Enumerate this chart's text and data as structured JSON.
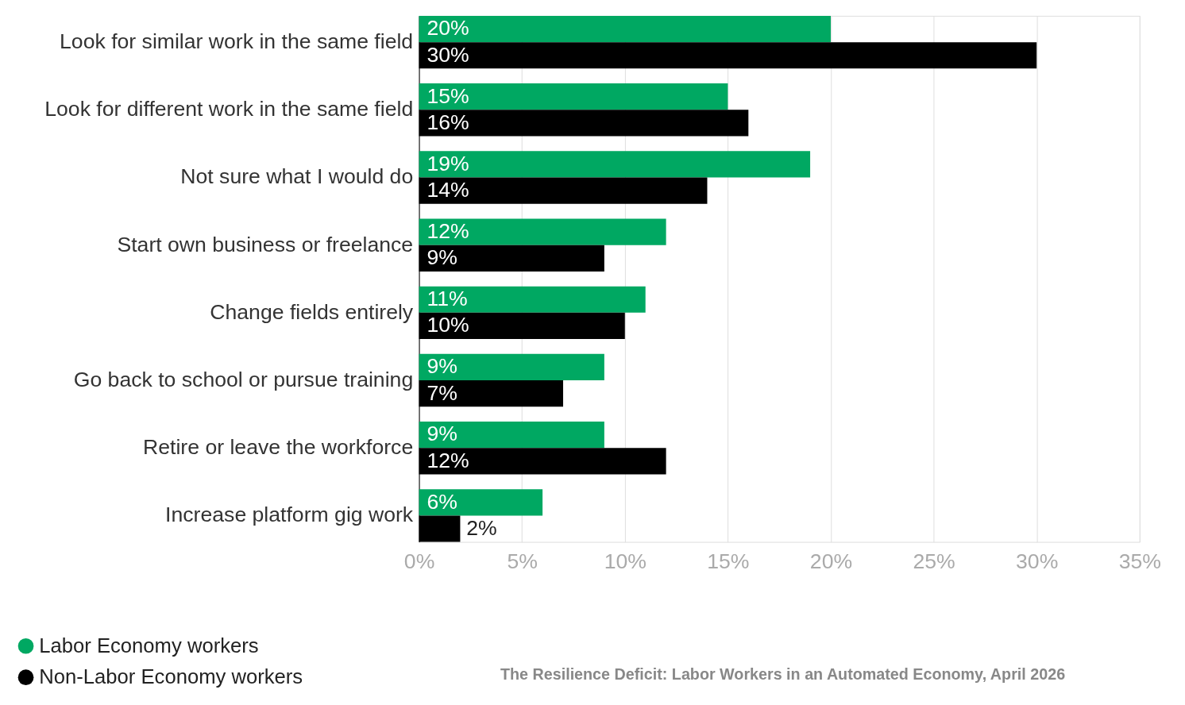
{
  "chart_data": {
    "type": "bar",
    "orientation": "horizontal",
    "categories": [
      "Look for similar work in the same field",
      "Look for different work in the same field",
      "Not sure what I would do",
      "Start own business or freelance",
      "Change fields entirely",
      "Go back to school or pursue training",
      "Retire or leave the workforce",
      "Increase platform gig work"
    ],
    "series": [
      {
        "name": "Labor Economy workers",
        "color": "#00a862",
        "values": [
          20,
          15,
          19,
          12,
          11,
          9,
          9,
          6
        ],
        "value_labels": [
          "20%",
          "15%",
          "19%",
          "12%",
          "11%",
          "9%",
          "9%",
          "6%"
        ]
      },
      {
        "name": "Non-Labor Economy workers",
        "color": "#000000",
        "values": [
          30,
          16,
          14,
          9,
          10,
          7,
          12,
          2
        ],
        "value_labels": [
          "30%",
          "16%",
          "14%",
          "9%",
          "10%",
          "7%",
          "12%",
          "2%"
        ]
      }
    ],
    "xlim": [
      0,
      35
    ],
    "xticks": [
      {
        "value": 0,
        "label": "0%"
      },
      {
        "value": 5,
        "label": "5%"
      },
      {
        "value": 10,
        "label": "10%"
      },
      {
        "value": 15,
        "label": "15%"
      },
      {
        "value": 20,
        "label": "20%"
      },
      {
        "value": 25,
        "label": "25%"
      },
      {
        "value": 30,
        "label": "30%"
      },
      {
        "value": 35,
        "label": "35%"
      }
    ],
    "grid": "x",
    "legend": "bottom left",
    "annotations": [
      "The Resilience Deficit: Labor Workers in an Automated Economy, April 2026"
    ]
  }
}
